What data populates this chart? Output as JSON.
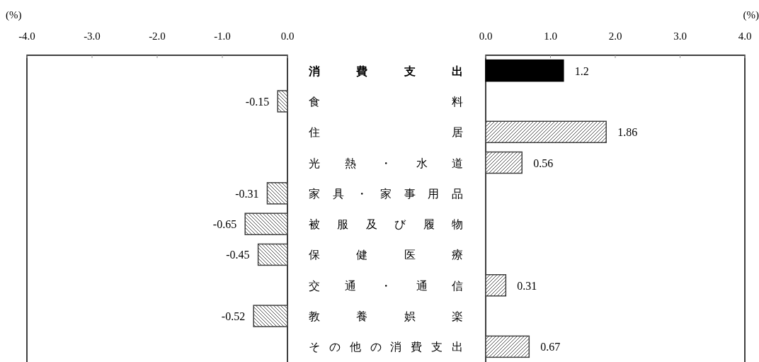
{
  "chart_data": [
    {
      "type": "bar",
      "orientation": "horizontal",
      "xlabel": "(%)",
      "categories": [
        null,
        null,
        null,
        null,
        null,
        null,
        null,
        null,
        null,
        null
      ],
      "values": [
        null,
        -0.15,
        null,
        null,
        -0.31,
        -0.65,
        -0.45,
        null,
        -0.52,
        null
      ],
      "colors": [
        null,
        "#404040",
        null,
        null,
        "#404040",
        "#404040",
        "#404040",
        null,
        "#404040",
        null
      ],
      "xlim": [
        -4,
        0
      ],
      "xticks": [
        {
          "value": -4,
          "label": "-4.0"
        },
        {
          "value": -3,
          "label": "-3.0"
        },
        {
          "value": -2,
          "label": "-2.0"
        },
        {
          "value": -1,
          "label": "-1.0"
        },
        {
          "value": 0,
          "label": "0.0"
        }
      ],
      "data_labels": true,
      "grid": false
    },
    {
      "type": "bar",
      "orientation": "horizontal",
      "xlabel": "(%)",
      "categories": [
        "消費支出",
        "食料",
        "住居",
        "光熱・水道",
        "家具・家事用品",
        "被服及び履物",
        "保健医療",
        "交通・通信",
        "教養娯楽",
        "その他の消費支出"
      ],
      "values": [
        1.2,
        null,
        1.86,
        0.56,
        null,
        null,
        null,
        0.31,
        null,
        0.67
      ],
      "colors": [
        "#000000",
        null,
        "#404040",
        "#404040",
        null,
        null,
        null,
        "#404040",
        null,
        "#404040"
      ],
      "xlim": [
        0,
        4
      ],
      "xticks": [
        {
          "value": 0,
          "label": "0.0"
        },
        {
          "value": 1,
          "label": "1.0"
        },
        {
          "value": 2,
          "label": "2.0"
        },
        {
          "value": 3,
          "label": "3.0"
        },
        {
          "value": 4,
          "label": "4.0"
        }
      ],
      "data_labels": true,
      "grid": false
    }
  ]
}
